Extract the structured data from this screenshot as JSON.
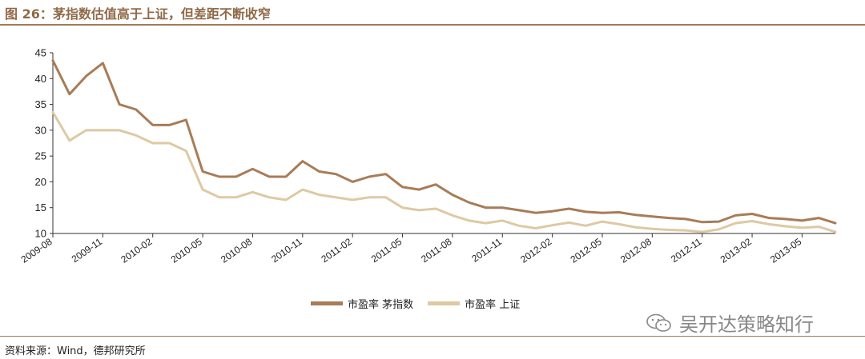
{
  "header": {
    "title": "图 26：茅指数估值高于上证，但差距不断收窄"
  },
  "footer": {
    "source": "资料来源：Wind，德邦研究所"
  },
  "watermark": {
    "text": "吴开达策略知行",
    "icon": "wechat-icon"
  },
  "colors": {
    "series_maotai": "#a87c57",
    "series_shanghai": "#ddc9a3",
    "axis": "#333333",
    "rule": "#a07a58"
  },
  "chart_data": {
    "type": "line",
    "ylim": [
      10,
      45
    ],
    "yticks": [
      10,
      15,
      20,
      25,
      30,
      35,
      40,
      45
    ],
    "xlim": [
      "2009-08",
      "2013-07"
    ],
    "xticks": [
      "2009-08",
      "2009-11",
      "2010-02",
      "2010-05",
      "2010-08",
      "2010-11",
      "2011-02",
      "2011-05",
      "2011-08",
      "2011-11",
      "2012-02",
      "2012-05",
      "2012-08",
      "2012-11",
      "2013-02",
      "2013-05"
    ],
    "legend_position": "bottom",
    "grid": false,
    "series": [
      {
        "name": "市盈率 茅指数",
        "x": [
          "2009-08",
          "2009-09",
          "2009-10",
          "2009-11",
          "2009-12",
          "2010-01",
          "2010-02",
          "2010-03",
          "2010-04",
          "2010-05",
          "2010-06",
          "2010-07",
          "2010-08",
          "2010-09",
          "2010-10",
          "2010-11",
          "2010-12",
          "2011-01",
          "2011-02",
          "2011-03",
          "2011-04",
          "2011-05",
          "2011-06",
          "2011-07",
          "2011-08",
          "2011-09",
          "2011-10",
          "2011-11",
          "2011-12",
          "2012-01",
          "2012-02",
          "2012-03",
          "2012-04",
          "2012-05",
          "2012-06",
          "2012-07",
          "2012-08",
          "2012-09",
          "2012-10",
          "2012-11",
          "2012-12",
          "2013-01",
          "2013-02",
          "2013-03",
          "2013-04",
          "2013-05",
          "2013-06",
          "2013-07"
        ],
        "values": [
          43.5,
          37,
          40.5,
          43,
          35,
          34,
          31,
          31,
          32,
          22,
          21,
          21,
          22.5,
          21,
          21,
          24,
          22,
          21.5,
          20,
          21,
          21.5,
          19,
          18.5,
          19.5,
          17.5,
          16,
          15,
          15,
          14.5,
          14,
          14.3,
          14.8,
          14.2,
          14,
          14.1,
          13.6,
          13.3,
          13,
          12.8,
          12.2,
          12.3,
          13.5,
          13.8,
          13,
          12.8,
          12.5,
          13,
          12
        ]
      },
      {
        "name": "市盈率 上证",
        "x": [
          "2009-08",
          "2009-09",
          "2009-10",
          "2009-11",
          "2009-12",
          "2010-01",
          "2010-02",
          "2010-03",
          "2010-04",
          "2010-05",
          "2010-06",
          "2010-07",
          "2010-08",
          "2010-09",
          "2010-10",
          "2010-11",
          "2010-12",
          "2011-01",
          "2011-02",
          "2011-03",
          "2011-04",
          "2011-05",
          "2011-06",
          "2011-07",
          "2011-08",
          "2011-09",
          "2011-10",
          "2011-11",
          "2011-12",
          "2012-01",
          "2012-02",
          "2012-03",
          "2012-04",
          "2012-05",
          "2012-06",
          "2012-07",
          "2012-08",
          "2012-09",
          "2012-10",
          "2012-11",
          "2012-12",
          "2013-01",
          "2013-02",
          "2013-03",
          "2013-04",
          "2013-05",
          "2013-06",
          "2013-07"
        ],
        "values": [
          33.5,
          28,
          30,
          30,
          30,
          29,
          27.5,
          27.5,
          26,
          18.5,
          17,
          17,
          18,
          17,
          16.5,
          18.5,
          17.5,
          17,
          16.5,
          17,
          17,
          15,
          14.5,
          14.8,
          13.5,
          12.5,
          12,
          12.5,
          11.5,
          11,
          11.6,
          12.1,
          11.5,
          12.3,
          11.8,
          11.2,
          10.9,
          10.7,
          10.6,
          10.3,
          10.8,
          12,
          12.4,
          11.8,
          11.4,
          11.1,
          11.3,
          10.3
        ]
      }
    ]
  },
  "legend": [
    {
      "label": "市盈率 茅指数"
    },
    {
      "label": "市盈率 上证"
    }
  ]
}
